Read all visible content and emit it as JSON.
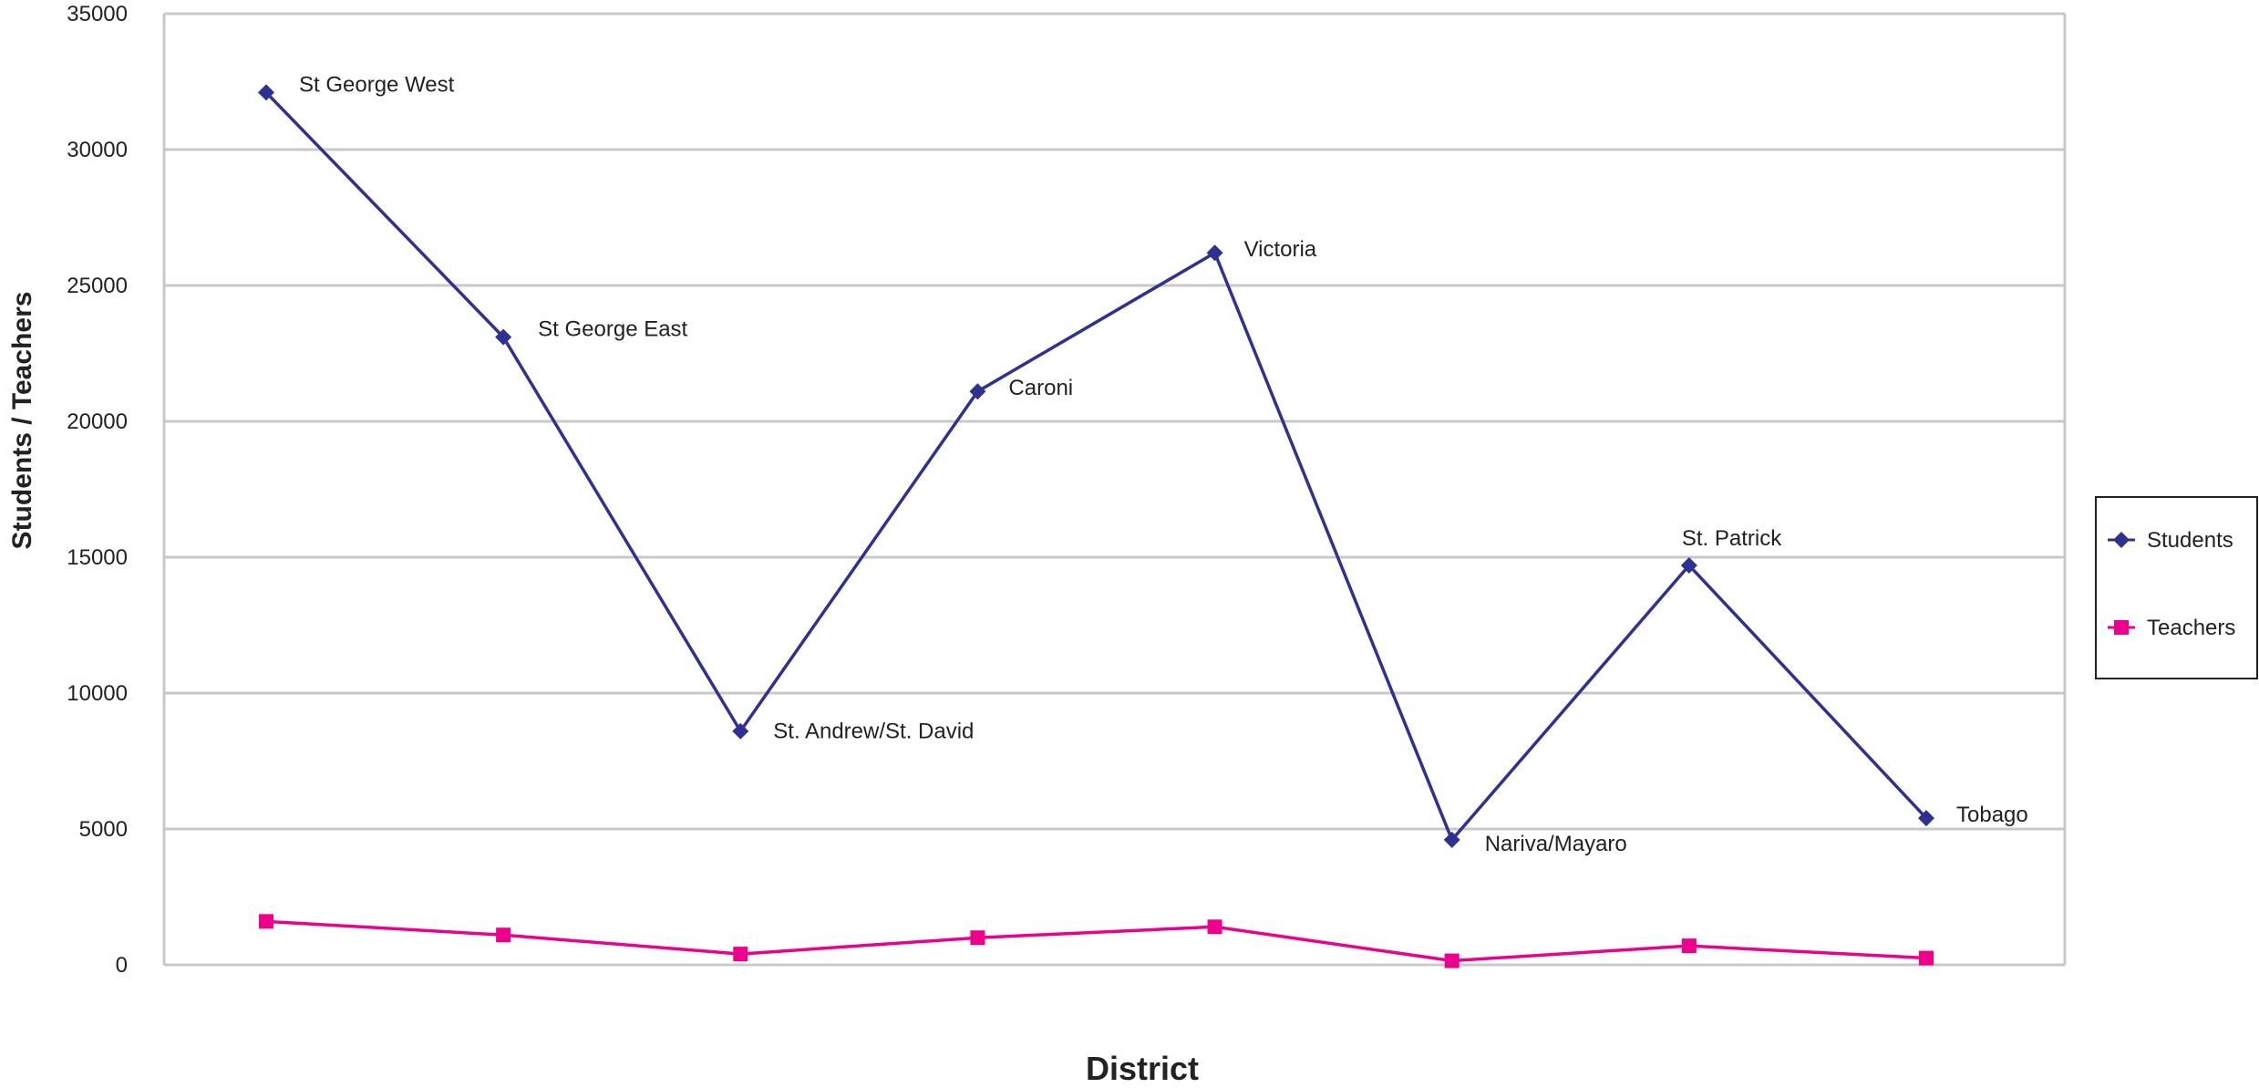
{
  "chart_data": {
    "type": "line",
    "categories": [
      "St George West",
      "St George East",
      "St. Andrew/St. David",
      "Caroni",
      "Victoria",
      "Nariva/Mayaro",
      "St. Patrick",
      "Tobago"
    ],
    "series": [
      {
        "name": "Students",
        "values": [
          32100,
          23100,
          8600,
          21100,
          26200,
          4600,
          14700,
          5400
        ],
        "color": "#2e3192",
        "marker": "diamond"
      },
      {
        "name": "Teachers",
        "values": [
          1600,
          1100,
          400,
          1000,
          1400,
          150,
          700,
          250
        ],
        "color": "#ec008c",
        "marker": "square"
      }
    ],
    "point_labels": [
      "St George West",
      "St George East",
      "St. Andrew/St. David",
      "Caroni",
      "Victoria",
      "Nariva/Mayaro",
      "St. Patrick",
      "Tobago"
    ],
    "xlabel": "District",
    "ylabel": "Students / Teachers",
    "ylim": [
      0,
      35000
    ],
    "yticks": [
      "0",
      "5000",
      "10000",
      "15000",
      "20000",
      "25000",
      "30000",
      "35000"
    ],
    "grid": true,
    "legend_position": "right",
    "gridline_color": "#c8c8c8"
  }
}
